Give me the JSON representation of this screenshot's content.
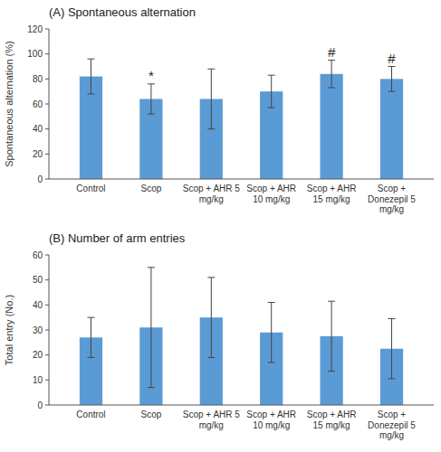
{
  "chart_data": [
    {
      "type": "bar",
      "title": "(A) Spontaneous alternation",
      "ylabel": "Spontaneous alternation (%)",
      "categories": [
        "Control",
        "Scop",
        "Scop + AHR 5\nmg/kg",
        "Scop + AHR\n10 mg/kg",
        "Scop + AHR\n15 mg/kg",
        "Scop +\nDonezepil 5\nmg/kg"
      ],
      "values": [
        82,
        64,
        64,
        70,
        84,
        80
      ],
      "errors": [
        14,
        12,
        24,
        13,
        11,
        10
      ],
      "annotations": [
        null,
        "*",
        null,
        null,
        "#",
        "#"
      ],
      "color": "#5b9bd5",
      "ylim": [
        0,
        120
      ],
      "yticks": [
        0,
        20,
        40,
        60,
        80,
        100,
        120
      ],
      "grid": false
    },
    {
      "type": "bar",
      "title": "(B) Number of arm entries",
      "ylabel": "Total entry (No.)",
      "categories": [
        "Control",
        "Scop",
        "Scop + AHR 5\nmg/kg",
        "Scop + AHR\n10 mg/kg",
        "Scop + AHR\n15 mg/kg",
        "Scop +\nDonezepil 5\nmg/kg"
      ],
      "values": [
        27,
        31,
        35,
        29,
        27.5,
        22.5
      ],
      "errors": [
        8,
        24,
        16,
        12,
        14,
        12
      ],
      "color": "#5b9bd5",
      "ylim": [
        0,
        60
      ],
      "yticks": [
        0,
        10,
        20,
        30,
        40,
        50,
        60
      ],
      "grid": false
    }
  ]
}
